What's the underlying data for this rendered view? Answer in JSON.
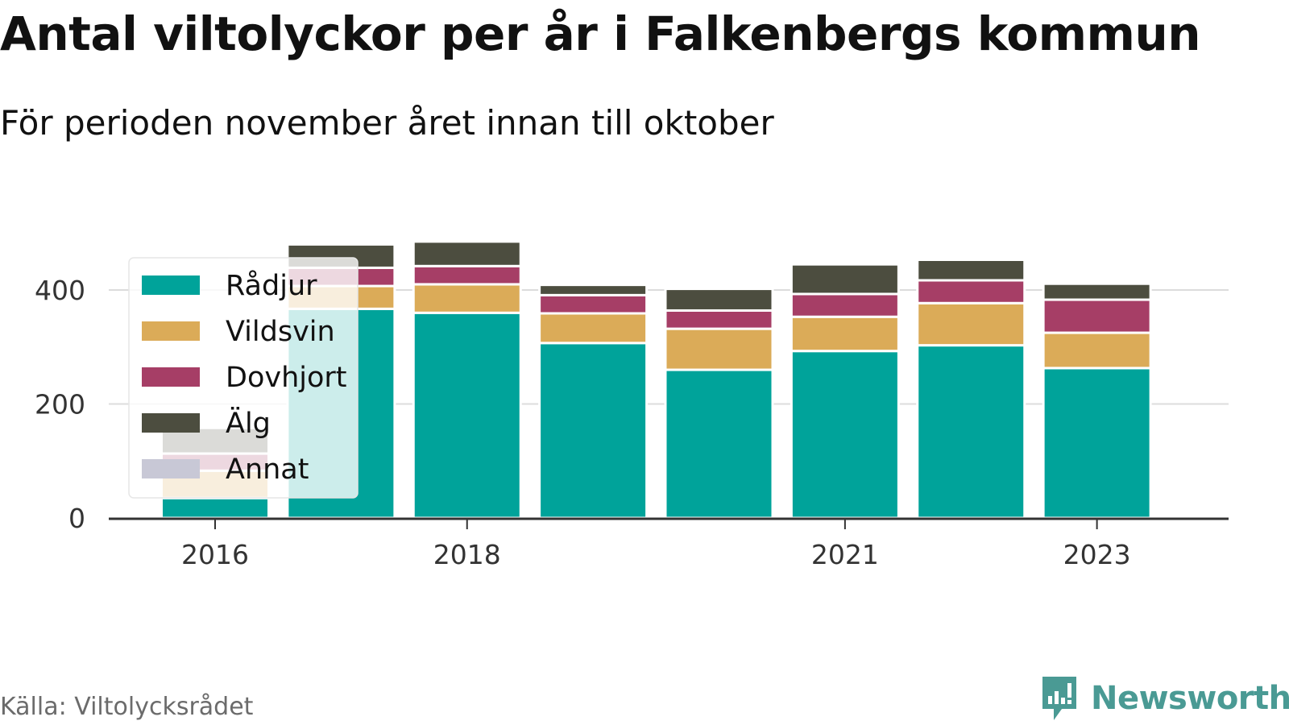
{
  "title": "Antal viltolyckor per år i Falkenbergs kommun",
  "subtitle": "För perioden november året innan till oktober",
  "source": "Källa: Viltolycksrådet",
  "brand": {
    "name": "Newsworthy",
    "icon": "bar-chart-bubble-icon",
    "color": "#4a9a94"
  },
  "chart_data": {
    "type": "bar",
    "stacked": true,
    "categories": [
      "2016",
      "2017",
      "2018",
      "2019",
      "2020",
      "2021",
      "2022",
      "2023"
    ],
    "xticks": [
      "2016",
      "2018",
      "2021",
      "2023"
    ],
    "yticks": [
      0,
      200,
      400
    ],
    "ylim": [
      0,
      500
    ],
    "grid": true,
    "legend_position": "top-left",
    "series": [
      {
        "name": "Rådjur",
        "color": "#00a39a",
        "values": [
          35,
          367,
          360,
          307,
          260,
          293,
          303,
          263
        ]
      },
      {
        "name": "Vildsvin",
        "color": "#dbab58",
        "values": [
          48,
          40,
          50,
          52,
          72,
          60,
          74,
          62
        ]
      },
      {
        "name": "Dovhjort",
        "color": "#a63e66",
        "values": [
          30,
          32,
          32,
          32,
          32,
          40,
          40,
          58
        ]
      },
      {
        "name": "Älg",
        "color": "#4c4d3f",
        "values": [
          45,
          41,
          43,
          18,
          38,
          52,
          36,
          28
        ]
      },
      {
        "name": "Annat",
        "color": "#c8c8d6",
        "values": [
          0,
          0,
          0,
          0,
          0,
          0,
          0,
          0
        ]
      }
    ]
  }
}
